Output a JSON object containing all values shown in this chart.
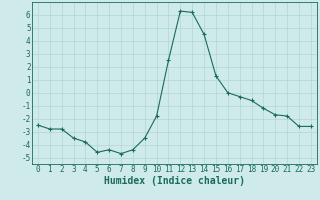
{
  "x": [
    0,
    1,
    2,
    3,
    4,
    5,
    6,
    7,
    8,
    9,
    10,
    11,
    12,
    13,
    14,
    15,
    16,
    17,
    18,
    19,
    20,
    21,
    22,
    23
  ],
  "y": [
    -2.5,
    -2.8,
    -2.8,
    -3.5,
    -3.8,
    -4.6,
    -4.4,
    -4.7,
    -4.4,
    -3.5,
    -1.8,
    2.5,
    6.3,
    6.2,
    4.5,
    1.3,
    0.0,
    -0.3,
    -0.6,
    -1.2,
    -1.7,
    -1.8,
    -2.6,
    -2.6
  ],
  "xlabel": "Humidex (Indice chaleur)",
  "line_color": "#1a6b5a",
  "marker": "+",
  "marker_size": 3,
  "marker_linewidth": 0.8,
  "line_width": 0.8,
  "bg_color": "#ceeaea",
  "grid_color": "#b8d8d8",
  "ylim": [
    -5.5,
    7.0
  ],
  "xlim": [
    -0.5,
    23.5
  ],
  "yticks": [
    -5,
    -4,
    -3,
    -2,
    -1,
    0,
    1,
    2,
    3,
    4,
    5,
    6
  ],
  "xticks": [
    0,
    1,
    2,
    3,
    4,
    5,
    6,
    7,
    8,
    9,
    10,
    11,
    12,
    13,
    14,
    15,
    16,
    17,
    18,
    19,
    20,
    21,
    22,
    23
  ],
  "tick_fontsize": 5.5,
  "xlabel_fontsize": 7,
  "spine_color": "#1a6b5a"
}
